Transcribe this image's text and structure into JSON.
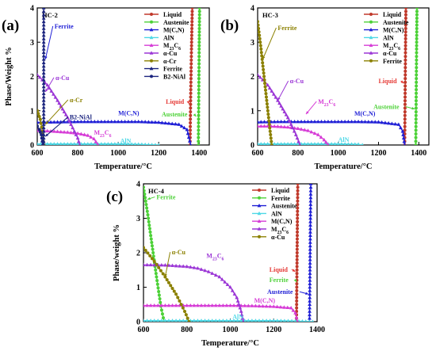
{
  "figure": {
    "background": "#ffffff",
    "axis_color": "#000000"
  },
  "chart_data": [
    {
      "type": "line",
      "panel_label": "(a)",
      "title": "HC-2",
      "xlabel": "Temperature/°C",
      "ylabel": "Phase/Weight %",
      "xlim": [
        600,
        1450
      ],
      "ylim": [
        0,
        4
      ],
      "xticks": [
        "600",
        "800",
        "1000",
        "1200",
        "1400"
      ],
      "yticks": [
        "0",
        "1",
        "2",
        "3",
        "4"
      ],
      "legend_position": "top-right",
      "legend": [
        "Liquid",
        "Austenite",
        "M(C,N)",
        "AlN",
        "M23C6",
        "α-Cu",
        "α-Cr",
        "Ferrite",
        "B2-NiAl"
      ],
      "series": [
        {
          "name": "Liquid",
          "color": "#c0392b",
          "marker": "circle",
          "x": [
            1355,
            1358,
            1362,
            1366
          ],
          "y": [
            0,
            1.4,
            2.8,
            4.0
          ]
        },
        {
          "name": "Austenite",
          "color": "#4cd137",
          "marker": "circle",
          "x": [
            1396,
            1398,
            1400,
            1402
          ],
          "y": [
            0,
            1.4,
            2.8,
            4.0
          ]
        },
        {
          "name": "M(C,N)",
          "color": "#1f1fd6",
          "marker": "triangle",
          "x": [
            600,
            700,
            800,
            900,
            1000,
            1100,
            1200,
            1300,
            1340,
            1358
          ],
          "y": [
            0.66,
            0.67,
            0.68,
            0.68,
            0.68,
            0.68,
            0.66,
            0.6,
            0.45,
            0
          ]
        },
        {
          "name": "AlN",
          "color": "#4dd8e6",
          "marker": "triangle",
          "x": [
            600,
            700,
            800,
            900,
            1000,
            1100,
            1200
          ],
          "y": [
            0.03,
            0.03,
            0.03,
            0.03,
            0.03,
            0.02,
            0
          ]
        },
        {
          "name": "M23C6",
          "color": "#d63bd6",
          "marker": "triangle",
          "x": [
            600,
            650,
            700,
            750,
            800,
            850,
            880,
            900
          ],
          "y": [
            0.42,
            0.41,
            0.39,
            0.37,
            0.34,
            0.28,
            0.18,
            0
          ]
        },
        {
          "name": "α-Cu",
          "color": "#9b36d6",
          "marker": "triangle",
          "x": [
            600,
            650,
            700,
            750,
            800,
            810
          ],
          "y": [
            2.05,
            1.75,
            1.3,
            0.8,
            0.2,
            0
          ]
        },
        {
          "name": "α-Cr",
          "color": "#8b8000",
          "marker": "circle",
          "x": [
            600,
            615,
            625,
            632
          ],
          "y": [
            1.0,
            0.75,
            0.4,
            0
          ]
        },
        {
          "name": "Ferrite",
          "color": "#1a237e",
          "marker": "triangle",
          "x": [
            632,
            632,
            632,
            632,
            632
          ],
          "y": [
            0,
            1.0,
            2.0,
            3.0,
            4.0
          ]
        },
        {
          "name": "B2-NiAl",
          "color": "#1a237e",
          "marker": "circle",
          "x": [
            600,
            610,
            620,
            628
          ],
          "y": [
            0.55,
            0.45,
            0.3,
            0
          ]
        }
      ],
      "annotations": [
        {
          "text": "Ferrite",
          "color": "#1f1fd6",
          "x": 685,
          "y": 3.4,
          "arrow_to": [
            640,
            2.5
          ]
        },
        {
          "text": "α-Cu",
          "color": "#9b36d6",
          "x": 690,
          "y": 1.9,
          "arrow_to": [
            640,
            1.55
          ]
        },
        {
          "text": "α-Cr",
          "color": "#8b8000",
          "x": 760,
          "y": 1.25,
          "arrow_to": [
            640,
            0.6
          ]
        },
        {
          "text": "B2-NiAl",
          "color": "#1a237e",
          "x": 760,
          "y": 0.75,
          "arrow_to": [
            640,
            0.25
          ]
        },
        {
          "text": "M(C,N)",
          "color": "#1f1fd6",
          "x": 1000,
          "y": 0.87
        },
        {
          "text": "M23C6",
          "color": "#d63bd6",
          "x": 880,
          "y": 0.3
        },
        {
          "text": "AlN",
          "color": "#4dd8e6",
          "x": 1010,
          "y": 0.06
        },
        {
          "text": "Liquid",
          "color": "#e53935",
          "x": 1235,
          "y": 1.2,
          "arrow_to": [
            1350,
            1.2
          ]
        },
        {
          "text": "Austenite",
          "color": "#4cd137",
          "x": 1215,
          "y": 0.83,
          "arrow_to": [
            1385,
            0.83
          ]
        }
      ]
    },
    {
      "type": "line",
      "panel_label": "(b)",
      "title": "HC-3",
      "xlabel": "Temperature/°C",
      "ylabel": "",
      "xlim": [
        600,
        1450
      ],
      "ylim": [
        0,
        4
      ],
      "xticks": [
        "600",
        "800",
        "1000",
        "1200",
        "1400"
      ],
      "yticks": [
        "0",
        "1",
        "2",
        "3",
        "4"
      ],
      "legend_position": "top-right",
      "legend": [
        "Liquid",
        "Austenite",
        "M(C,N)",
        "AlN",
        "M23C6",
        "α-Cu",
        "Ferrite"
      ],
      "series": [
        {
          "name": "Liquid",
          "color": "#c0392b",
          "marker": "circle",
          "x": [
            1330,
            1332,
            1334,
            1336
          ],
          "y": [
            0,
            1.4,
            2.8,
            4.0
          ]
        },
        {
          "name": "Austenite",
          "color": "#4cd137",
          "marker": "circle",
          "x": [
            1385,
            1387,
            1389,
            1391
          ],
          "y": [
            0,
            1.4,
            2.8,
            4.0
          ]
        },
        {
          "name": "M(C,N)",
          "color": "#1f1fd6",
          "marker": "triangle",
          "x": [
            600,
            700,
            800,
            900,
            1000,
            1100,
            1200,
            1300,
            1320,
            1330
          ],
          "y": [
            0.67,
            0.68,
            0.68,
            0.68,
            0.68,
            0.68,
            0.67,
            0.6,
            0.4,
            0
          ]
        },
        {
          "name": "AlN",
          "color": "#4dd8e6",
          "marker": "triangle",
          "x": [
            600,
            700,
            800,
            900,
            1000,
            1100,
            1120
          ],
          "y": [
            0.03,
            0.03,
            0.03,
            0.03,
            0.03,
            0.02,
            0
          ]
        },
        {
          "name": "M23C6",
          "color": "#d63bd6",
          "marker": "triangle",
          "x": [
            600,
            650,
            700,
            750,
            800,
            850,
            900,
            930,
            950
          ],
          "y": [
            0.55,
            0.55,
            0.54,
            0.52,
            0.48,
            0.42,
            0.3,
            0.15,
            0
          ]
        },
        {
          "name": "α-Cu",
          "color": "#9b36d6",
          "marker": "triangle",
          "x": [
            600,
            650,
            700,
            750,
            790,
            810
          ],
          "y": [
            2.05,
            1.75,
            1.3,
            0.8,
            0.3,
            0
          ]
        },
        {
          "name": "Ferrite",
          "color": "#8b8000",
          "marker": "circle",
          "x": [
            600,
            615,
            630,
            645,
            660,
            670
          ],
          "y": [
            3.6,
            2.9,
            2.1,
            1.3,
            0.5,
            0
          ]
        }
      ],
      "annotations": [
        {
          "text": "Ferrite",
          "color": "#8b8000",
          "x": 700,
          "y": 3.35,
          "arrow_to": [
            625,
            2.5
          ]
        },
        {
          "text": "α-Cu",
          "color": "#9b36d6",
          "x": 760,
          "y": 1.8,
          "arrow_to": [
            700,
            1.3
          ]
        },
        {
          "text": "M23C6",
          "color": "#d63bd6",
          "x": 900,
          "y": 1.2,
          "arrow_to": [
            840,
            0.9
          ]
        },
        {
          "text": "M(C,N)",
          "color": "#1f1fd6",
          "x": 1080,
          "y": 0.85
        },
        {
          "text": "AlN",
          "color": "#4dd8e6",
          "x": 1000,
          "y": 0.09
        },
        {
          "text": "Liquid",
          "color": "#e53935",
          "x": 1200,
          "y": 1.8,
          "arrow_to": [
            1325,
            1.8
          ]
        },
        {
          "text": "Austenite",
          "color": "#4cd137",
          "x": 1175,
          "y": 1.05,
          "arrow_to": [
            1380,
            1.05
          ]
        }
      ]
    },
    {
      "type": "line",
      "panel_label": "(c)",
      "title": "HC-4",
      "xlabel": "Temperature/°C",
      "ylabel": "Phase/weight %",
      "xlim": [
        600,
        1400
      ],
      "ylim": [
        0,
        4
      ],
      "xticks": [
        "600",
        "800",
        "1000",
        "1200",
        "1400"
      ],
      "yticks": [
        "0",
        "1",
        "2",
        "3",
        "4"
      ],
      "legend_position": "top-right",
      "legend": [
        "Liquid",
        "Ferrite",
        "Austenite",
        "AlN",
        "M(C,N)",
        "M23C6",
        "α-Cu"
      ],
      "series": [
        {
          "name": "Liquid",
          "color": "#c0392b",
          "marker": "circle",
          "x": [
            1305,
            1307,
            1309,
            1311
          ],
          "y": [
            0,
            1.4,
            2.8,
            4.0
          ]
        },
        {
          "name": "Ferrite",
          "color": "#4cd137",
          "marker": "circle",
          "x": [
            600,
            620,
            640,
            660,
            680,
            695
          ],
          "y": [
            3.9,
            3.1,
            2.2,
            1.3,
            0.45,
            0
          ]
        },
        {
          "name": "Austenite",
          "color": "#1f1fd6",
          "marker": "triangle",
          "x": [
            1365,
            1367,
            1369,
            1371
          ],
          "y": [
            0,
            1.4,
            2.8,
            4.0
          ]
        },
        {
          "name": "AlN",
          "color": "#4dd8e6",
          "marker": "triangle",
          "x": [
            600,
            700,
            800,
            900,
            1000,
            1100,
            1200,
            1300,
            1380
          ],
          "y": [
            0.03,
            0.03,
            0.03,
            0.03,
            0.03,
            0.03,
            0.03,
            0.02,
            0
          ]
        },
        {
          "name": "M(C,N)",
          "color": "#d63bd6",
          "marker": "triangle",
          "x": [
            600,
            700,
            800,
            900,
            1000,
            1100,
            1200,
            1280,
            1300,
            1310
          ],
          "y": [
            0.47,
            0.47,
            0.47,
            0.47,
            0.47,
            0.46,
            0.44,
            0.4,
            0.25,
            0
          ]
        },
        {
          "name": "M23C6",
          "color": "#9b36d6",
          "marker": "triangle",
          "x": [
            600,
            700,
            800,
            850,
            900,
            950,
            1000,
            1030,
            1050,
            1060
          ],
          "y": [
            1.65,
            1.64,
            1.6,
            1.55,
            1.45,
            1.3,
            1.0,
            0.7,
            0.3,
            0
          ]
        },
        {
          "name": "α-Cu",
          "color": "#8b8000",
          "marker": "circle",
          "x": [
            600,
            650,
            700,
            750,
            790,
            810
          ],
          "y": [
            2.15,
            1.75,
            1.3,
            0.8,
            0.3,
            0
          ]
        }
      ],
      "annotations": [
        {
          "text": "Ferrite",
          "color": "#4cd137",
          "x": 660,
          "y": 3.55,
          "arrow_to": [
            618,
            3.55
          ]
        },
        {
          "text": "α-Cu",
          "color": "#8b8000",
          "x": 730,
          "y": 1.95,
          "arrow_to": [
            700,
            1.3
          ]
        },
        {
          "text": "M23C6",
          "color": "#9b36d6",
          "x": 890,
          "y": 1.85
        },
        {
          "text": "M(C,N)",
          "color": "#d63bd6",
          "x": 1110,
          "y": 0.55
        },
        {
          "text": "AlN",
          "color": "#4dd8e6",
          "x": 1010,
          "y": 0.08
        },
        {
          "text": "Liquid",
          "color": "#e53935",
          "x": 1180,
          "y": 1.45,
          "arrow_to": [
            1300,
            1.45
          ]
        },
        {
          "text": "Ferrite",
          "color": "#4cd137",
          "x": 1180,
          "y": 1.15,
          "arrow_to": [
            1305,
            1.15
          ]
        },
        {
          "text": "Austenite",
          "color": "#1f1fd6",
          "x": 1170,
          "y": 0.8,
          "arrow_to": [
            1360,
            0.8
          ]
        }
      ]
    }
  ]
}
